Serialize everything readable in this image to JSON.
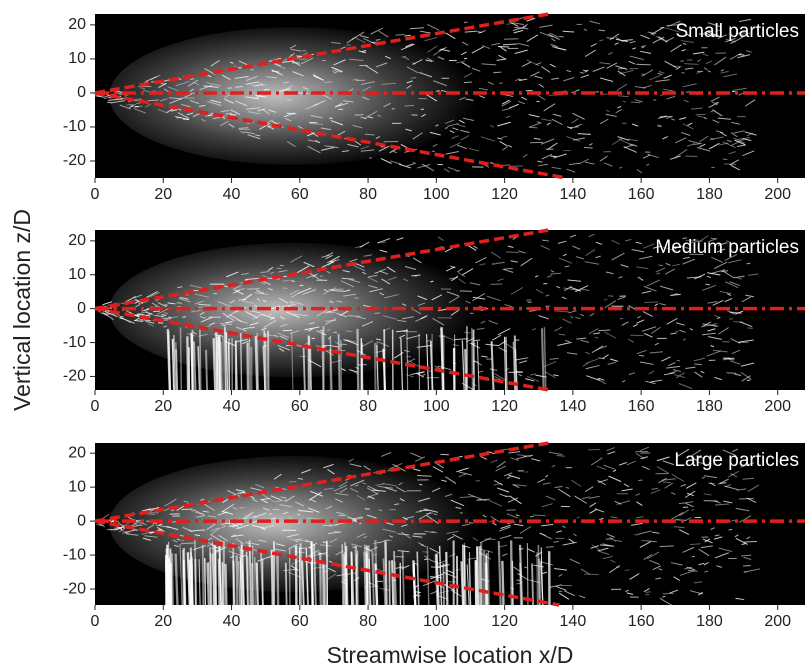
{
  "ylabel": "Vertical location z/D",
  "xlabel": "Streamwise location x/D",
  "chart_data": [
    {
      "type": "image",
      "label": "Small particles",
      "xlim": [
        0,
        208
      ],
      "ylim": [
        -25,
        23.2
      ],
      "xticks": [
        0,
        20,
        40,
        60,
        80,
        100,
        120,
        140,
        160,
        180,
        200
      ],
      "yticks": [
        -20,
        -10,
        0,
        10,
        20
      ],
      "spread_lines": [
        {
          "x": [
            0,
            133
          ],
          "y": [
            0,
            23.2
          ]
        },
        {
          "x": [
            0,
            138
          ],
          "y": [
            0,
            -25
          ]
        }
      ],
      "centerline": {
        "x": [
          0,
          208
        ],
        "y": [
          0,
          0
        ]
      }
    },
    {
      "type": "image",
      "label": "Medium particles",
      "xlim": [
        0,
        208
      ],
      "ylim": [
        -24,
        23.2
      ],
      "xticks": [
        0,
        20,
        40,
        60,
        80,
        100,
        120,
        140,
        160,
        180,
        200
      ],
      "yticks": [
        -20,
        -10,
        0,
        10,
        20
      ],
      "spread_lines": [
        {
          "x": [
            0,
            133
          ],
          "y": [
            0,
            23.2
          ]
        },
        {
          "x": [
            0,
            133
          ],
          "y": [
            0,
            -24
          ]
        }
      ],
      "centerline": {
        "x": [
          0,
          208
        ],
        "y": [
          0,
          0
        ]
      }
    },
    {
      "type": "image",
      "label": "Large particles",
      "xlim": [
        0,
        208
      ],
      "ylim": [
        -24.7,
        23
      ],
      "xticks": [
        0,
        20,
        40,
        60,
        80,
        100,
        120,
        140,
        160,
        180,
        200
      ],
      "yticks": [
        -20,
        -10,
        0,
        10,
        20
      ],
      "spread_lines": [
        {
          "x": [
            0,
            133
          ],
          "y": [
            0,
            23
          ]
        },
        {
          "x": [
            0,
            136
          ],
          "y": [
            0,
            -24.7
          ]
        }
      ],
      "centerline": {
        "x": [
          0,
          208
        ],
        "y": [
          0,
          0
        ]
      }
    }
  ]
}
